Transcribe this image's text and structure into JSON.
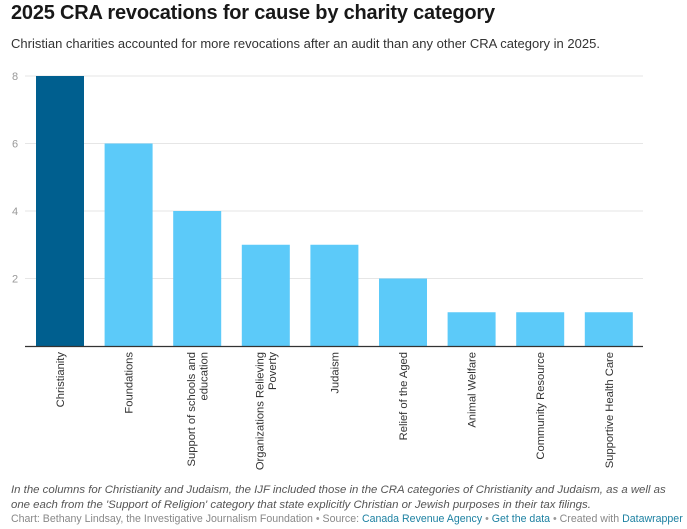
{
  "header": {
    "title": "2025 CRA revocations for cause by charity category",
    "subtitle": "Christian charities accounted for more revocations after an audit than any other CRA category in 2025."
  },
  "chart_data": {
    "type": "bar",
    "title": "2025 CRA revocations for cause by charity category",
    "subtitle": "Christian charities accounted for more revocations after an audit than any other CRA category in 2025.",
    "xlabel": "",
    "ylabel": "",
    "categories": [
      "Christianity",
      "Foundations",
      "Support of schools and education",
      "Organizations Relieving Poverty",
      "Judaism",
      "Relief of the Aged",
      "Animal Welfare",
      "Community Resource",
      "Supportive Health Care"
    ],
    "category_label_lines": [
      [
        "Christianity"
      ],
      [
        "Foundations"
      ],
      [
        "Support of schools and",
        "education"
      ],
      [
        "Organizations Relieving",
        "Poverty"
      ],
      [
        "Judaism"
      ],
      [
        "Relief of the Aged"
      ],
      [
        "Animal Welfare"
      ],
      [
        "Community Resource"
      ],
      [
        "Supportive Health Care"
      ]
    ],
    "values": [
      8,
      6,
      4,
      3,
      3,
      2,
      1,
      1,
      1
    ],
    "highlight": [
      true,
      false,
      false,
      false,
      false,
      false,
      false,
      false,
      false
    ],
    "colors": {
      "highlight": "#005f8f",
      "default": "#5ccaf9",
      "grid": "#e6e6e6",
      "axis": "#333333",
      "tick_label": "#999999"
    },
    "ylim": [
      0,
      8
    ],
    "yticks": [
      2,
      4,
      6,
      8
    ],
    "grid": true,
    "legend": "none"
  },
  "footer": {
    "notes": "In the columns for Christianity and Judaism, the IJF included those in the CRA categories of Christianity and Judaism, as a well as one each from the 'Support of Religion' category that state explicitly Christian or Jewish purposes in their tax filings.",
    "chart_credit": "Chart: Bethany Lindsay, the Investigative Journalism Foundation",
    "separator": " • ",
    "source_label": "Source: ",
    "source_link": "Canada Revenue Agency",
    "get_data_link": "Get the data",
    "created_with": "Created with ",
    "datawrapper_link": "Datawrapper"
  }
}
